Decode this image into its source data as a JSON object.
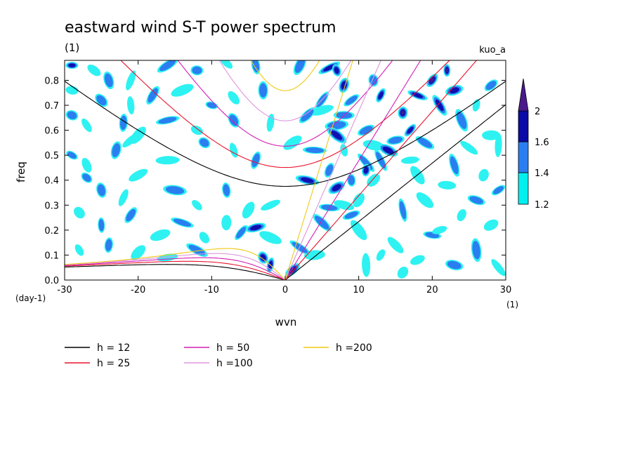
{
  "chart_data": {
    "type": "heatmap",
    "title": "eastward wind S-T power spectrum",
    "title_unit": "(1)",
    "dataset_label": "kuo_a",
    "xlabel": "wvn",
    "ylabel": "freq",
    "x_unit": "(1)",
    "y_unit": "(day-1)",
    "xlim": [
      -30,
      30
    ],
    "ylim": [
      0,
      0.88
    ],
    "x_ticks": [
      -30,
      -20,
      -10,
      0,
      10,
      20,
      30
    ],
    "x_tick_labels": [
      "-30",
      "-20",
      "-10",
      "0",
      "10",
      "20",
      "30"
    ],
    "y_ticks": [
      0.0,
      0.1,
      0.2,
      0.3,
      0.4,
      0.5,
      0.6,
      0.7,
      0.8
    ],
    "y_tick_labels": [
      "0.0",
      "0.1",
      "0.2",
      "0.3",
      "0.4",
      "0.5",
      "0.6",
      "0.7",
      "0.8"
    ],
    "colorbar": {
      "levels": [
        1.2,
        1.4,
        1.6,
        2
      ],
      "labels": [
        "1.2",
        "1.4",
        "1.6",
        "2"
      ],
      "colors": [
        "#00f0f0",
        "#2a7ef0",
        "#0a0aa8",
        "#4a1a8c"
      ]
    },
    "contour_fill_colors": [
      "#2ef2f2",
      "#2a7ef0",
      "#1010b0",
      "#401d90"
    ],
    "power_blobs": [
      [
        -29,
        0.86,
        1.6
      ],
      [
        -26,
        0.84,
        1.3
      ],
      [
        -24,
        0.8,
        1.4
      ],
      [
        -21,
        0.8,
        1.3
      ],
      [
        -16,
        0.86,
        1.5
      ],
      [
        -12,
        0.84,
        1.4
      ],
      [
        -8,
        0.87,
        1.3
      ],
      [
        -4,
        0.86,
        1.5
      ],
      [
        2,
        0.86,
        1.4
      ],
      [
        6,
        0.85,
        1.6
      ],
      [
        -29,
        0.76,
        1.3
      ],
      [
        -25,
        0.72,
        1.4
      ],
      [
        -21,
        0.7,
        1.3
      ],
      [
        -18,
        0.74,
        1.5
      ],
      [
        -14,
        0.76,
        1.3
      ],
      [
        -10,
        0.7,
        1.4
      ],
      [
        -7,
        0.73,
        1.3
      ],
      [
        -3,
        0.76,
        1.5
      ],
      [
        5,
        0.72,
        1.5
      ],
      [
        5,
        0.68,
        1.3
      ],
      [
        -29,
        0.66,
        1.5
      ],
      [
        -27,
        0.62,
        1.3
      ],
      [
        -22,
        0.63,
        1.4
      ],
      [
        -20,
        0.58,
        1.3
      ],
      [
        -16,
        0.64,
        1.5
      ],
      [
        -12,
        0.6,
        1.3
      ],
      [
        -7,
        0.64,
        1.4
      ],
      [
        -2,
        0.63,
        1.3
      ],
      [
        3,
        0.66,
        1.5
      ],
      [
        7,
        0.62,
        1.4
      ],
      [
        -29,
        0.5,
        1.4
      ],
      [
        -27,
        0.46,
        1.3
      ],
      [
        -23,
        0.52,
        1.4
      ],
      [
        -21,
        0.56,
        1.3
      ],
      [
        -16,
        0.48,
        1.3
      ],
      [
        -11,
        0.55,
        1.4
      ],
      [
        -7,
        0.52,
        1.3
      ],
      [
        -4,
        0.48,
        1.4
      ],
      [
        1,
        0.55,
        1.3
      ],
      [
        4,
        0.52,
        1.5
      ],
      [
        -27,
        0.41,
        1.5
      ],
      [
        -25,
        0.36,
        1.4
      ],
      [
        -22,
        0.33,
        1.3
      ],
      [
        -20,
        0.42,
        1.3
      ],
      [
        -15,
        0.36,
        1.4
      ],
      [
        -12,
        0.3,
        1.3
      ],
      [
        -8,
        0.36,
        1.4
      ],
      [
        -5,
        0.28,
        1.3
      ],
      [
        -2,
        0.3,
        1.3
      ],
      [
        3,
        0.4,
        1.6
      ],
      [
        -28,
        0.27,
        1.3
      ],
      [
        -25,
        0.22,
        1.4
      ],
      [
        -21,
        0.26,
        1.5
      ],
      [
        -17,
        0.18,
        1.3
      ],
      [
        -14,
        0.23,
        1.4
      ],
      [
        -11,
        0.17,
        1.3
      ],
      [
        -8,
        0.23,
        1.3
      ],
      [
        -6,
        0.19,
        1.5
      ],
      [
        -4,
        0.21,
        1.7
      ],
      [
        -2,
        0.17,
        1.3
      ],
      [
        -28,
        0.12,
        1.3
      ],
      [
        -24,
        0.14,
        1.4
      ],
      [
        -20,
        0.11,
        1.3
      ],
      [
        -16,
        0.09,
        1.3
      ],
      [
        -12,
        0.12,
        1.4
      ],
      [
        -3,
        0.09,
        1.6
      ],
      [
        -2,
        0.06,
        1.7
      ],
      [
        1,
        0.04,
        2.0
      ],
      [
        4,
        0.1,
        1.3
      ],
      [
        2,
        0.13,
        1.4
      ],
      [
        7,
        0.84,
        1.8
      ],
      [
        8,
        0.78,
        1.6
      ],
      [
        9,
        0.72,
        1.4
      ],
      [
        8,
        0.66,
        1.5
      ],
      [
        7,
        0.58,
        1.6
      ],
      [
        8,
        0.52,
        1.3
      ],
      [
        6,
        0.44,
        1.4
      ],
      [
        7,
        0.37,
        1.6
      ],
      [
        6,
        0.29,
        1.5
      ],
      [
        5,
        0.23,
        1.4
      ],
      [
        12,
        0.8,
        1.5
      ],
      [
        13,
        0.74,
        1.6
      ],
      [
        11,
        0.6,
        1.5
      ],
      [
        12,
        0.54,
        1.3
      ],
      [
        11,
        0.47,
        1.4
      ],
      [
        9,
        0.4,
        1.5
      ],
      [
        10,
        0.32,
        1.3
      ],
      [
        9,
        0.26,
        1.4
      ],
      [
        8,
        0.3,
        1.3
      ],
      [
        10,
        0.2,
        1.3
      ],
      [
        22,
        0.84,
        2.0
      ],
      [
        20,
        0.8,
        2.0
      ],
      [
        23,
        0.76,
        1.8
      ],
      [
        18,
        0.74,
        1.8
      ],
      [
        21,
        0.7,
        1.6
      ],
      [
        16,
        0.67,
        1.9
      ],
      [
        17,
        0.6,
        1.7
      ],
      [
        15,
        0.56,
        1.5
      ],
      [
        14,
        0.52,
        1.6
      ],
      [
        13,
        0.48,
        1.4
      ],
      [
        11,
        0.44,
        1.6
      ],
      [
        12,
        0.4,
        1.3
      ],
      [
        17,
        0.48,
        1.3
      ],
      [
        19,
        0.55,
        1.4
      ],
      [
        24,
        0.64,
        1.5
      ],
      [
        26,
        0.7,
        1.3
      ],
      [
        28,
        0.78,
        1.4
      ],
      [
        28,
        0.58,
        1.3
      ],
      [
        25,
        0.53,
        1.3
      ],
      [
        23,
        0.46,
        1.4
      ],
      [
        27,
        0.42,
        1.3
      ],
      [
        29,
        0.36,
        1.4
      ],
      [
        22,
        0.38,
        1.3
      ],
      [
        19,
        0.32,
        1.3
      ],
      [
        16,
        0.28,
        1.4
      ],
      [
        24,
        0.26,
        1.3
      ],
      [
        28,
        0.22,
        1.3
      ],
      [
        20,
        0.18,
        1.4
      ],
      [
        15,
        0.14,
        1.3
      ],
      [
        26,
        0.12,
        1.4
      ],
      [
        13,
        0.1,
        1.3
      ],
      [
        18,
        0.08,
        1.3
      ],
      [
        23,
        0.06,
        1.5
      ],
      [
        29,
        0.05,
        1.3
      ],
      [
        11,
        0.06,
        1.3
      ],
      [
        16,
        0.03,
        1.3
      ],
      [
        21,
        0.2,
        1.3
      ],
      [
        26,
        0.32,
        1.4
      ],
      [
        18,
        0.42,
        1.3
      ],
      [
        29,
        0.54,
        1.3
      ]
    ],
    "dispersion_curves": [
      {
        "h": 12,
        "label": "h = 12",
        "color": "#000000"
      },
      {
        "h": 25,
        "label": "h = 25",
        "color": "#e8142e"
      },
      {
        "h": 50,
        "label": "h = 50",
        "color": "#d21eb4"
      },
      {
        "h": 100,
        "label": "h =100",
        "color": "#de96de"
      },
      {
        "h": 200,
        "label": "h =200",
        "color": "#f0c814"
      }
    ],
    "legend_placement": "bottom"
  }
}
